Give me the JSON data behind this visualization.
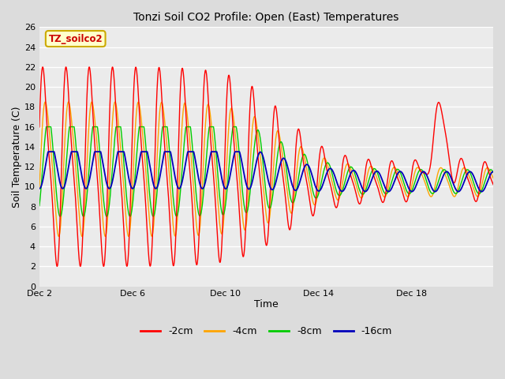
{
  "title": "Tonzi Soil CO2 Profile: Open (East) Temperatures",
  "xlabel": "Time",
  "ylabel": "Soil Temperature (C)",
  "ylim": [
    0,
    26
  ],
  "yticks": [
    0,
    2,
    4,
    6,
    8,
    10,
    12,
    14,
    16,
    18,
    20,
    22,
    24,
    26
  ],
  "bg_color": "#dcdcdc",
  "plot_bg": "#ebebeb",
  "colors": {
    "-2cm": "#ff0000",
    "-4cm": "#ffa500",
    "-8cm": "#00cc00",
    "-16cm": "#0000bb"
  },
  "legend_label": "TZ_soilco2",
  "legend_bg": "#ffffcc",
  "legend_border": "#ccaa00",
  "x_tick_labels": [
    "Dec 2",
    "Dec 6",
    "Dec 10",
    "Dec 14",
    "Dec 18"
  ],
  "x_tick_positions": [
    0,
    4,
    8,
    12,
    16
  ],
  "total_days": 19.5,
  "figsize": [
    6.4,
    4.8
  ],
  "dpi": 100
}
